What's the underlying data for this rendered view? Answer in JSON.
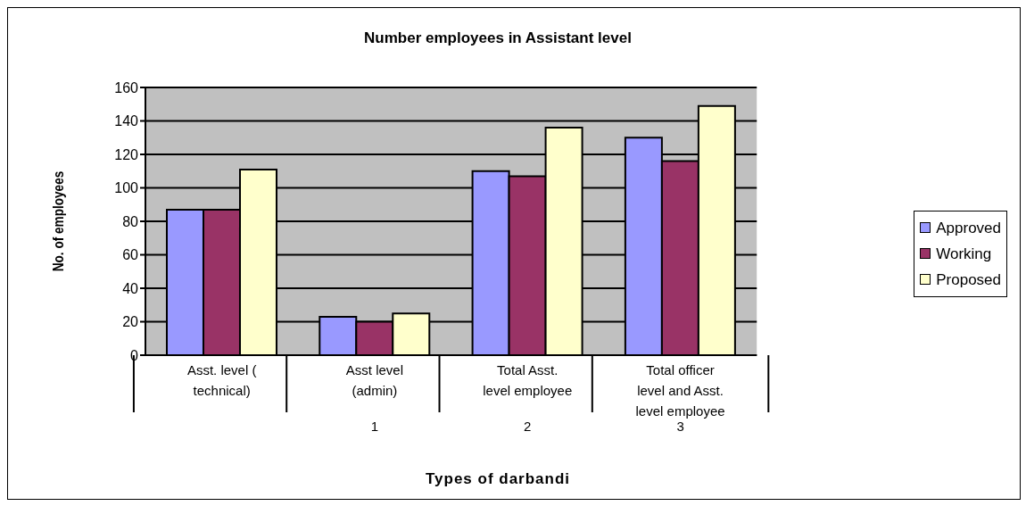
{
  "chart_data": {
    "type": "bar",
    "title": "Number employees in Assistant level",
    "xlabel": "Types of darbandi",
    "ylabel": "No. of employees",
    "categories": [
      "Asst. level ( technical)",
      "Asst level (admin)",
      "Total Asst. level employee",
      "Total officer level and Asst. level employee"
    ],
    "series": [
      {
        "name": "Approved",
        "color": "#9999ff",
        "values": [
          87,
          23,
          110,
          130
        ]
      },
      {
        "name": "Working",
        "color": "#993366",
        "values": [
          87,
          20,
          107,
          116
        ]
      },
      {
        "name": "Proposed",
        "color": "#ffffcc",
        "values": [
          111,
          25,
          136,
          149
        ]
      }
    ],
    "annotations": [
      "1",
      "2",
      "3"
    ],
    "ylim": [
      0,
      160
    ],
    "yticks": [
      0,
      20,
      40,
      60,
      80,
      100,
      120,
      140,
      160
    ],
    "grid": "y",
    "legend": "right"
  }
}
